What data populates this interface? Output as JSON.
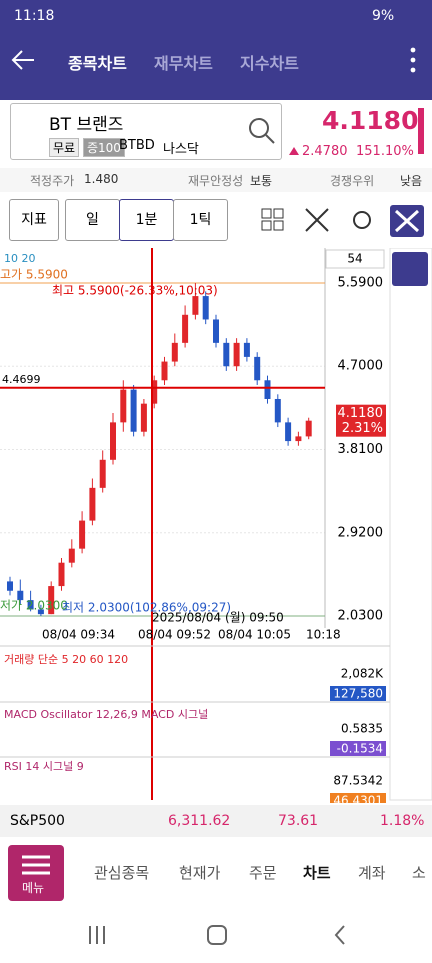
{
  "status_bar": {
    "time": "11:18",
    "battery": "9%"
  },
  "header": {
    "tabs": [
      "종목차트",
      "재무차트",
      "지수차트"
    ]
  },
  "stock": {
    "name": "BT 브랜즈",
    "badges": [
      "무료",
      "증100"
    ],
    "ticker": "BTBD",
    "exchange": "나스닥",
    "price": "4.1180",
    "change": "2.4780",
    "change_pct": "151.10%"
  },
  "info": {
    "fair_price_label": "적정주가",
    "fair_price": "1.480",
    "stability_label": "재무안정성",
    "stability": "보통",
    "advantage_label": "경쟁우위",
    "advantage": "낮음"
  },
  "toolbar": {
    "buttons": [
      "지표",
      "일",
      "1분",
      "1틱"
    ],
    "count": "54"
  },
  "chart_data": {
    "type": "candlestick",
    "legend": "10 20",
    "open": [
      2.4,
      2.3,
      2.2,
      2.1,
      2.05,
      2.35,
      2.6,
      2.75,
      3.05,
      3.4,
      3.7,
      4.1,
      4.45,
      4.0,
      4.3,
      4.55,
      4.75,
      4.95,
      5.25,
      5.45,
      5.2,
      4.95,
      4.7,
      4.95,
      4.8,
      4.55,
      4.35,
      4.1,
      3.9,
      3.95
    ],
    "high": [
      2.45,
      2.42,
      2.3,
      2.15,
      2.4,
      2.65,
      2.85,
      3.15,
      3.5,
      3.8,
      4.2,
      4.55,
      4.5,
      4.35,
      4.6,
      4.8,
      5.05,
      5.35,
      5.59,
      5.5,
      5.25,
      5.0,
      5.0,
      5.0,
      4.85,
      4.6,
      4.4,
      4.15,
      4.0,
      4.15
    ],
    "low": [
      2.25,
      2.15,
      2.08,
      2.03,
      2.05,
      2.3,
      2.55,
      2.7,
      3.0,
      3.35,
      3.65,
      4.0,
      3.95,
      3.95,
      4.25,
      4.5,
      4.7,
      4.9,
      5.2,
      5.15,
      4.9,
      4.65,
      4.65,
      4.75,
      4.5,
      4.3,
      4.05,
      3.85,
      3.85,
      3.92
    ],
    "close": [
      2.3,
      2.2,
      2.1,
      2.05,
      2.35,
      2.6,
      2.75,
      3.05,
      3.4,
      3.7,
      4.1,
      4.45,
      4.0,
      4.3,
      4.55,
      4.75,
      4.95,
      5.25,
      5.45,
      5.2,
      4.95,
      4.7,
      4.95,
      4.8,
      4.55,
      4.35,
      4.1,
      3.9,
      3.95,
      4.118
    ],
    "ylim": [
      1.966,
      5.964
    ],
    "yticks": [
      {
        "value": 5.59,
        "label": "5.5900"
      },
      {
        "value": 4.7,
        "label": "4.7000"
      },
      {
        "value": 3.81,
        "label": "3.8100"
      },
      {
        "value": 2.92,
        "label": "2.9200"
      },
      {
        "value": 2.03,
        "label": "2.0300"
      }
    ],
    "crosshair": {
      "value": 4.4699,
      "label": "4.4699",
      "time": "2025/08/04 (월) 09:50"
    },
    "last": {
      "value": 4.118,
      "label": "4.1180",
      "change": "2.31%"
    },
    "annotations": [
      "고가 5.5900",
      "최고 5.5900(-26.33%,10:03)",
      "저가 2.0300",
      "최저 2.0300(102.86%,09:27)"
    ],
    "x_labels": [
      "08/04 09:34",
      "08/04 09:52",
      "08/04 10:05",
      "10:18"
    ]
  },
  "indicators": [
    {
      "title": "거래량 단순 5 20 60 120",
      "values": [
        "2,082K",
        "127,580"
      ]
    },
    {
      "title": "MACD Oscillator 12,26,9 MACD 시그널",
      "values": [
        "0.5835",
        "-0.1534"
      ]
    },
    {
      "title": "RSI 14 시그널 9",
      "values": [
        "87.5342",
        "46.4301"
      ]
    }
  ],
  "index_bar": {
    "name": "S&P500",
    "value": "6,311.62",
    "change": "73.61",
    "change_pct": "1.18%"
  },
  "bottom_nav": {
    "menu": "메뉴",
    "tabs": [
      "관심종목",
      "현재가",
      "주문",
      "차트",
      "계좌",
      "소"
    ]
  }
}
